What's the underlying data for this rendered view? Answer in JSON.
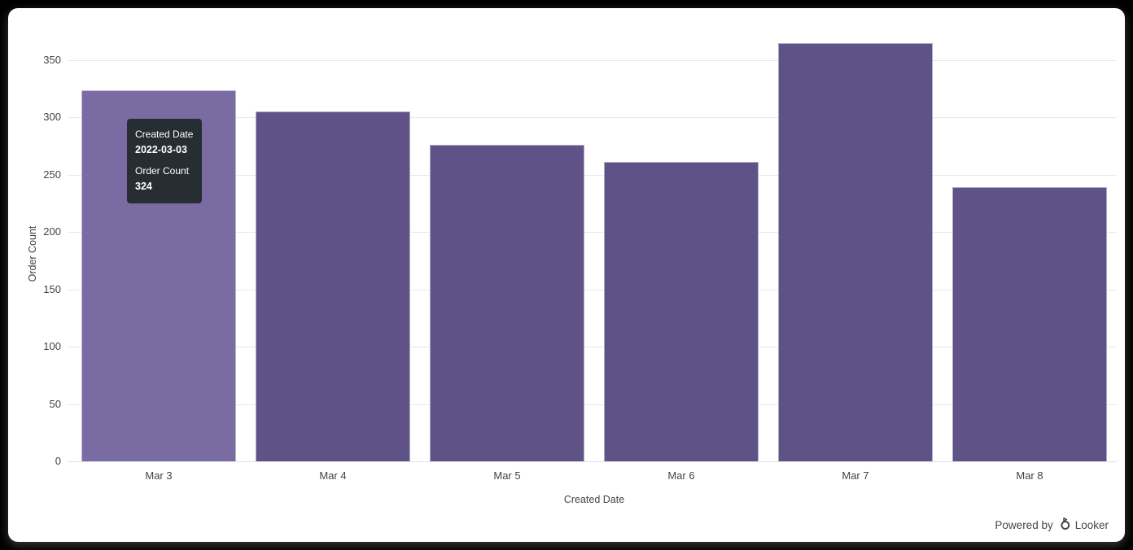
{
  "chart_data": {
    "type": "bar",
    "categories": [
      "Mar 3",
      "Mar 4",
      "Mar 5",
      "Mar 6",
      "Mar 7",
      "Mar 8"
    ],
    "values": [
      324,
      305,
      276,
      261,
      365,
      239
    ],
    "title": "",
    "xlabel": "Created Date",
    "ylabel": "Order Count",
    "ylim": [
      0,
      374
    ],
    "yticks": [
      0,
      50,
      100,
      150,
      200,
      250,
      300,
      350
    ],
    "grid": true,
    "legend": "none",
    "hovered_index": 0
  },
  "theme": {
    "bar_color": "#5f5287",
    "hover_bar_color": "#7a6ca3",
    "grid_color": "#e8e8e8",
    "axis_line_color": "#dde1ee",
    "label_color": "#434343",
    "canvas_bg": "#ffffff",
    "page_bg": "#000000",
    "tooltip_bg": "#262d33",
    "tooltip_text": "#ffffff"
  },
  "tooltip": {
    "field1_label": "Created Date",
    "field1_value": "2022-03-03",
    "field2_label": "Order Count",
    "field2_value": "324"
  },
  "footer": {
    "powered_by": "Powered by",
    "brand": "Looker"
  }
}
